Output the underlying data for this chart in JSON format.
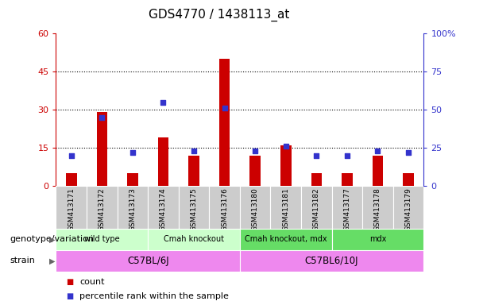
{
  "title": "GDS4770 / 1438113_at",
  "samples": [
    "GSM413171",
    "GSM413172",
    "GSM413173",
    "GSM413174",
    "GSM413175",
    "GSM413176",
    "GSM413180",
    "GSM413181",
    "GSM413182",
    "GSM413177",
    "GSM413178",
    "GSM413179"
  ],
  "counts": [
    5,
    29,
    5,
    19,
    12,
    50,
    12,
    16,
    5,
    5,
    12,
    5
  ],
  "percentiles": [
    20,
    45,
    22,
    55,
    23,
    51,
    23,
    26,
    20,
    20,
    23,
    22
  ],
  "ylim_left": [
    0,
    60
  ],
  "ylim_right": [
    0,
    100
  ],
  "yticks_left": [
    0,
    15,
    30,
    45,
    60
  ],
  "yticks_right": [
    0,
    25,
    50,
    75,
    100
  ],
  "ytick_labels_left": [
    "0",
    "15",
    "30",
    "45",
    "60"
  ],
  "ytick_labels_right": [
    "0",
    "25",
    "50",
    "75",
    "100%"
  ],
  "bar_color": "#cc0000",
  "dot_color": "#3333cc",
  "genotype_groups": [
    {
      "label": "wild type",
      "start": 0,
      "end": 3,
      "color": "#ccffcc"
    },
    {
      "label": "Cmah knockout",
      "start": 3,
      "end": 6,
      "color": "#ccffcc"
    },
    {
      "label": "Cmah knockout, mdx",
      "start": 6,
      "end": 9,
      "color": "#66dd66"
    },
    {
      "label": "mdx",
      "start": 9,
      "end": 12,
      "color": "#66dd66"
    }
  ],
  "strain_groups": [
    {
      "label": "C57BL/6J",
      "start": 0,
      "end": 6,
      "color": "#ee88ee"
    },
    {
      "label": "C57BL6/10J",
      "start": 6,
      "end": 12,
      "color": "#ee88ee"
    }
  ],
  "legend_count_label": "count",
  "legend_percentile_label": "percentile rank within the sample",
  "xlabel_genotype": "genotype/variation",
  "xlabel_strain": "strain",
  "bg_color": "#ffffff",
  "tick_bg_color": "#cccccc"
}
